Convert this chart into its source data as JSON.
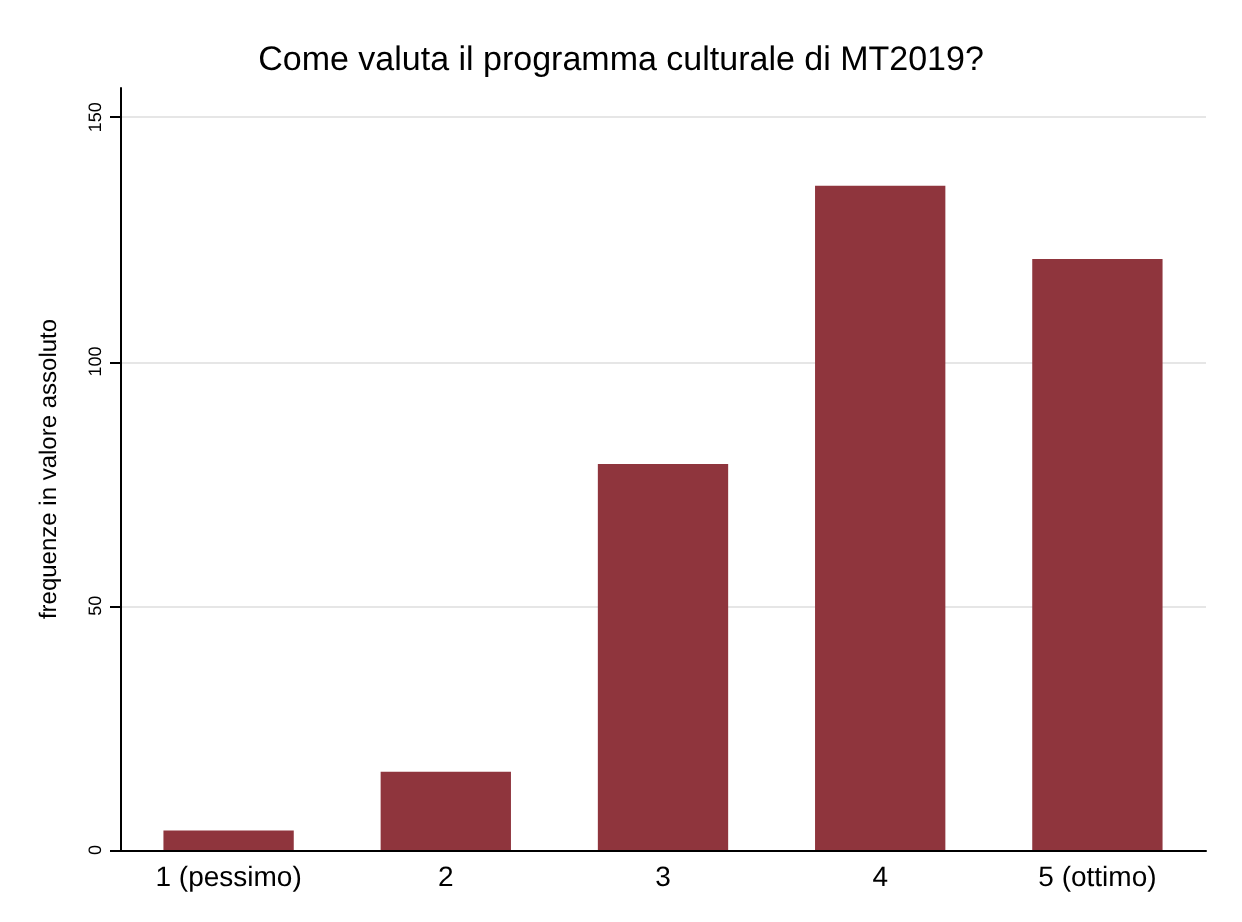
{
  "chart_data": {
    "type": "bar",
    "title": "Come valuta il programma culturale di MT2019?",
    "ylabel": "frequenze in valore assoluto",
    "categories": [
      "1 (pessimo)",
      "2",
      "3",
      "4",
      "5 (ottimo)"
    ],
    "values": [
      4,
      16,
      79,
      136,
      121
    ],
    "color": "#8f353d",
    "ylim": [
      0,
      156
    ],
    "yticks": [
      0,
      50,
      100,
      150
    ],
    "grid": "y"
  }
}
